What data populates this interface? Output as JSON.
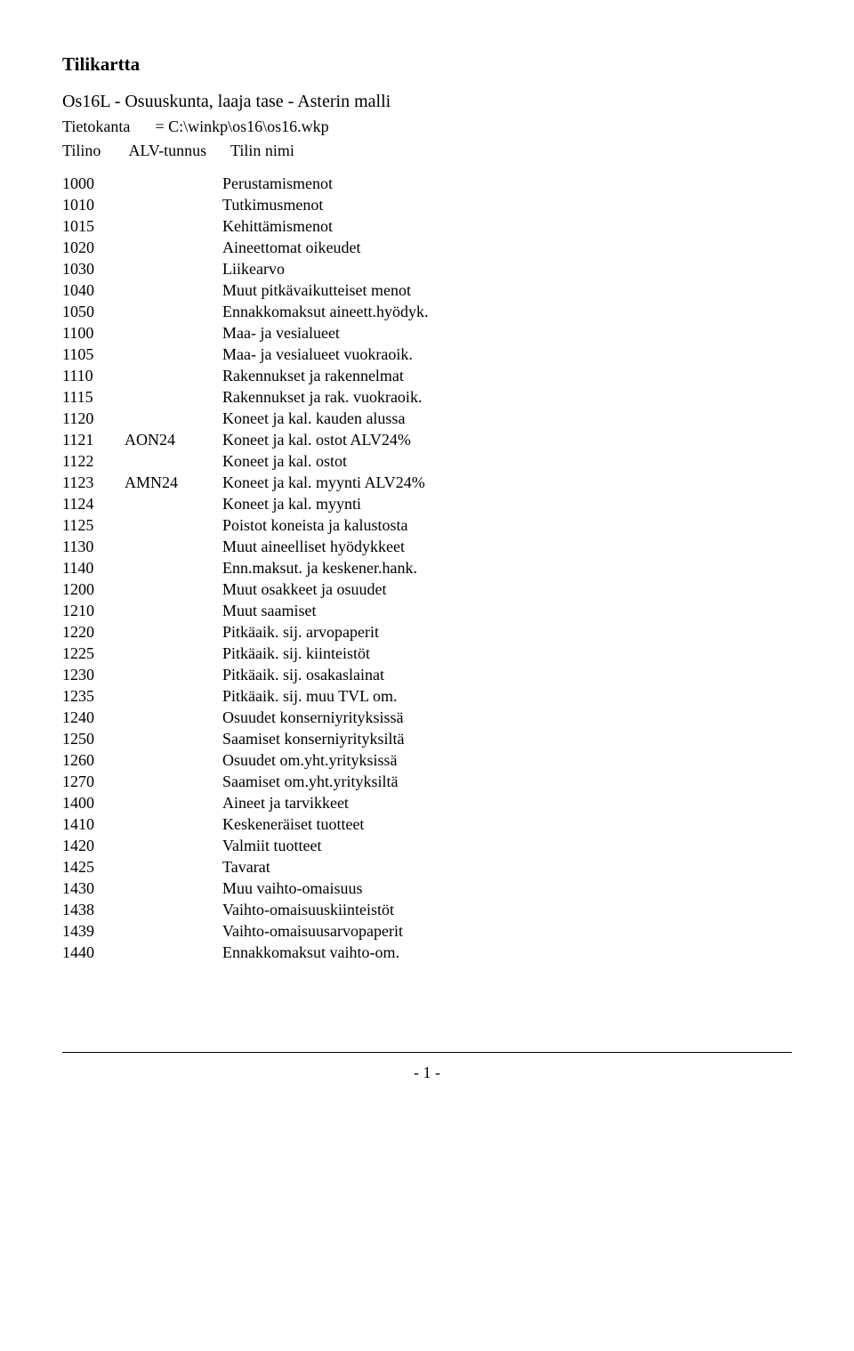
{
  "title": "Tilikartta",
  "subtitle": "Os16L - Osuuskunta, laaja tase - Asterin malli",
  "db": {
    "label": "Tietokanta",
    "equals": "= C:\\winkp\\os16\\os16.wkp"
  },
  "headers": {
    "tilino": "Tilino",
    "alv": "ALV-tunnus",
    "nimi": "Tilin nimi"
  },
  "rows": [
    {
      "tilino": "1000",
      "alv": "",
      "nimi": "Perustamismenot"
    },
    {
      "tilino": "1010",
      "alv": "",
      "nimi": "Tutkimusmenot"
    },
    {
      "tilino": "1015",
      "alv": "",
      "nimi": "Kehittämismenot"
    },
    {
      "tilino": "1020",
      "alv": "",
      "nimi": "Aineettomat oikeudet"
    },
    {
      "tilino": "1030",
      "alv": "",
      "nimi": "Liikearvo"
    },
    {
      "tilino": "1040",
      "alv": "",
      "nimi": "Muut pitkävaikutteiset menot"
    },
    {
      "tilino": "1050",
      "alv": "",
      "nimi": "Ennakkomaksut aineett.hyödyk."
    },
    {
      "tilino": "1100",
      "alv": "",
      "nimi": "Maa- ja vesialueet"
    },
    {
      "tilino": "1105",
      "alv": "",
      "nimi": "Maa- ja vesialueet vuokraoik."
    },
    {
      "tilino": "1110",
      "alv": "",
      "nimi": "Rakennukset ja rakennelmat"
    },
    {
      "tilino": "1115",
      "alv": "",
      "nimi": "Rakennukset ja rak. vuokraoik."
    },
    {
      "tilino": "1120",
      "alv": "",
      "nimi": "Koneet ja kal. kauden alussa"
    },
    {
      "tilino": "1121",
      "alv": "AON24",
      "nimi": "Koneet ja kal. ostot ALV24%"
    },
    {
      "tilino": "1122",
      "alv": "",
      "nimi": "Koneet ja kal. ostot"
    },
    {
      "tilino": "1123",
      "alv": "AMN24",
      "nimi": "Koneet ja kal. myynti ALV24%"
    },
    {
      "tilino": "1124",
      "alv": "",
      "nimi": "Koneet ja kal. myynti"
    },
    {
      "tilino": "1125",
      "alv": "",
      "nimi": "Poistot koneista ja kalustosta"
    },
    {
      "tilino": "1130",
      "alv": "",
      "nimi": "Muut aineelliset hyödykkeet"
    },
    {
      "tilino": "1140",
      "alv": "",
      "nimi": "Enn.maksut. ja keskener.hank."
    },
    {
      "tilino": "1200",
      "alv": "",
      "nimi": "Muut osakkeet ja osuudet"
    },
    {
      "tilino": "1210",
      "alv": "",
      "nimi": "Muut saamiset"
    },
    {
      "tilino": "1220",
      "alv": "",
      "nimi": "Pitkäaik. sij. arvopaperit"
    },
    {
      "tilino": "1225",
      "alv": "",
      "nimi": "Pitkäaik. sij. kiinteistöt"
    },
    {
      "tilino": "1230",
      "alv": "",
      "nimi": "Pitkäaik. sij. osakaslainat"
    },
    {
      "tilino": "1235",
      "alv": "",
      "nimi": "Pitkäaik. sij. muu TVL om."
    },
    {
      "tilino": "1240",
      "alv": "",
      "nimi": "Osuudet konserniyrityksissä"
    },
    {
      "tilino": "1250",
      "alv": "",
      "nimi": "Saamiset konserniyrityksiltä"
    },
    {
      "tilino": "1260",
      "alv": "",
      "nimi": "Osuudet om.yht.yrityksissä"
    },
    {
      "tilino": "1270",
      "alv": "",
      "nimi": "Saamiset om.yht.yrityksiltä"
    },
    {
      "tilino": "1400",
      "alv": "",
      "nimi": "Aineet ja tarvikkeet"
    },
    {
      "tilino": "1410",
      "alv": "",
      "nimi": "Keskeneräiset tuotteet"
    },
    {
      "tilino": "1420",
      "alv": "",
      "nimi": "Valmiit tuotteet"
    },
    {
      "tilino": "1425",
      "alv": "",
      "nimi": "Tavarat"
    },
    {
      "tilino": "1430",
      "alv": "",
      "nimi": "Muu vaihto-omaisuus"
    },
    {
      "tilino": "1438",
      "alv": "",
      "nimi": "Vaihto-omaisuuskiinteistöt"
    },
    {
      "tilino": "1439",
      "alv": "",
      "nimi": "Vaihto-omaisuusarvopaperit"
    },
    {
      "tilino": "1440",
      "alv": "",
      "nimi": "Ennakkomaksut vaihto-om."
    }
  ],
  "page": "- 1 -"
}
